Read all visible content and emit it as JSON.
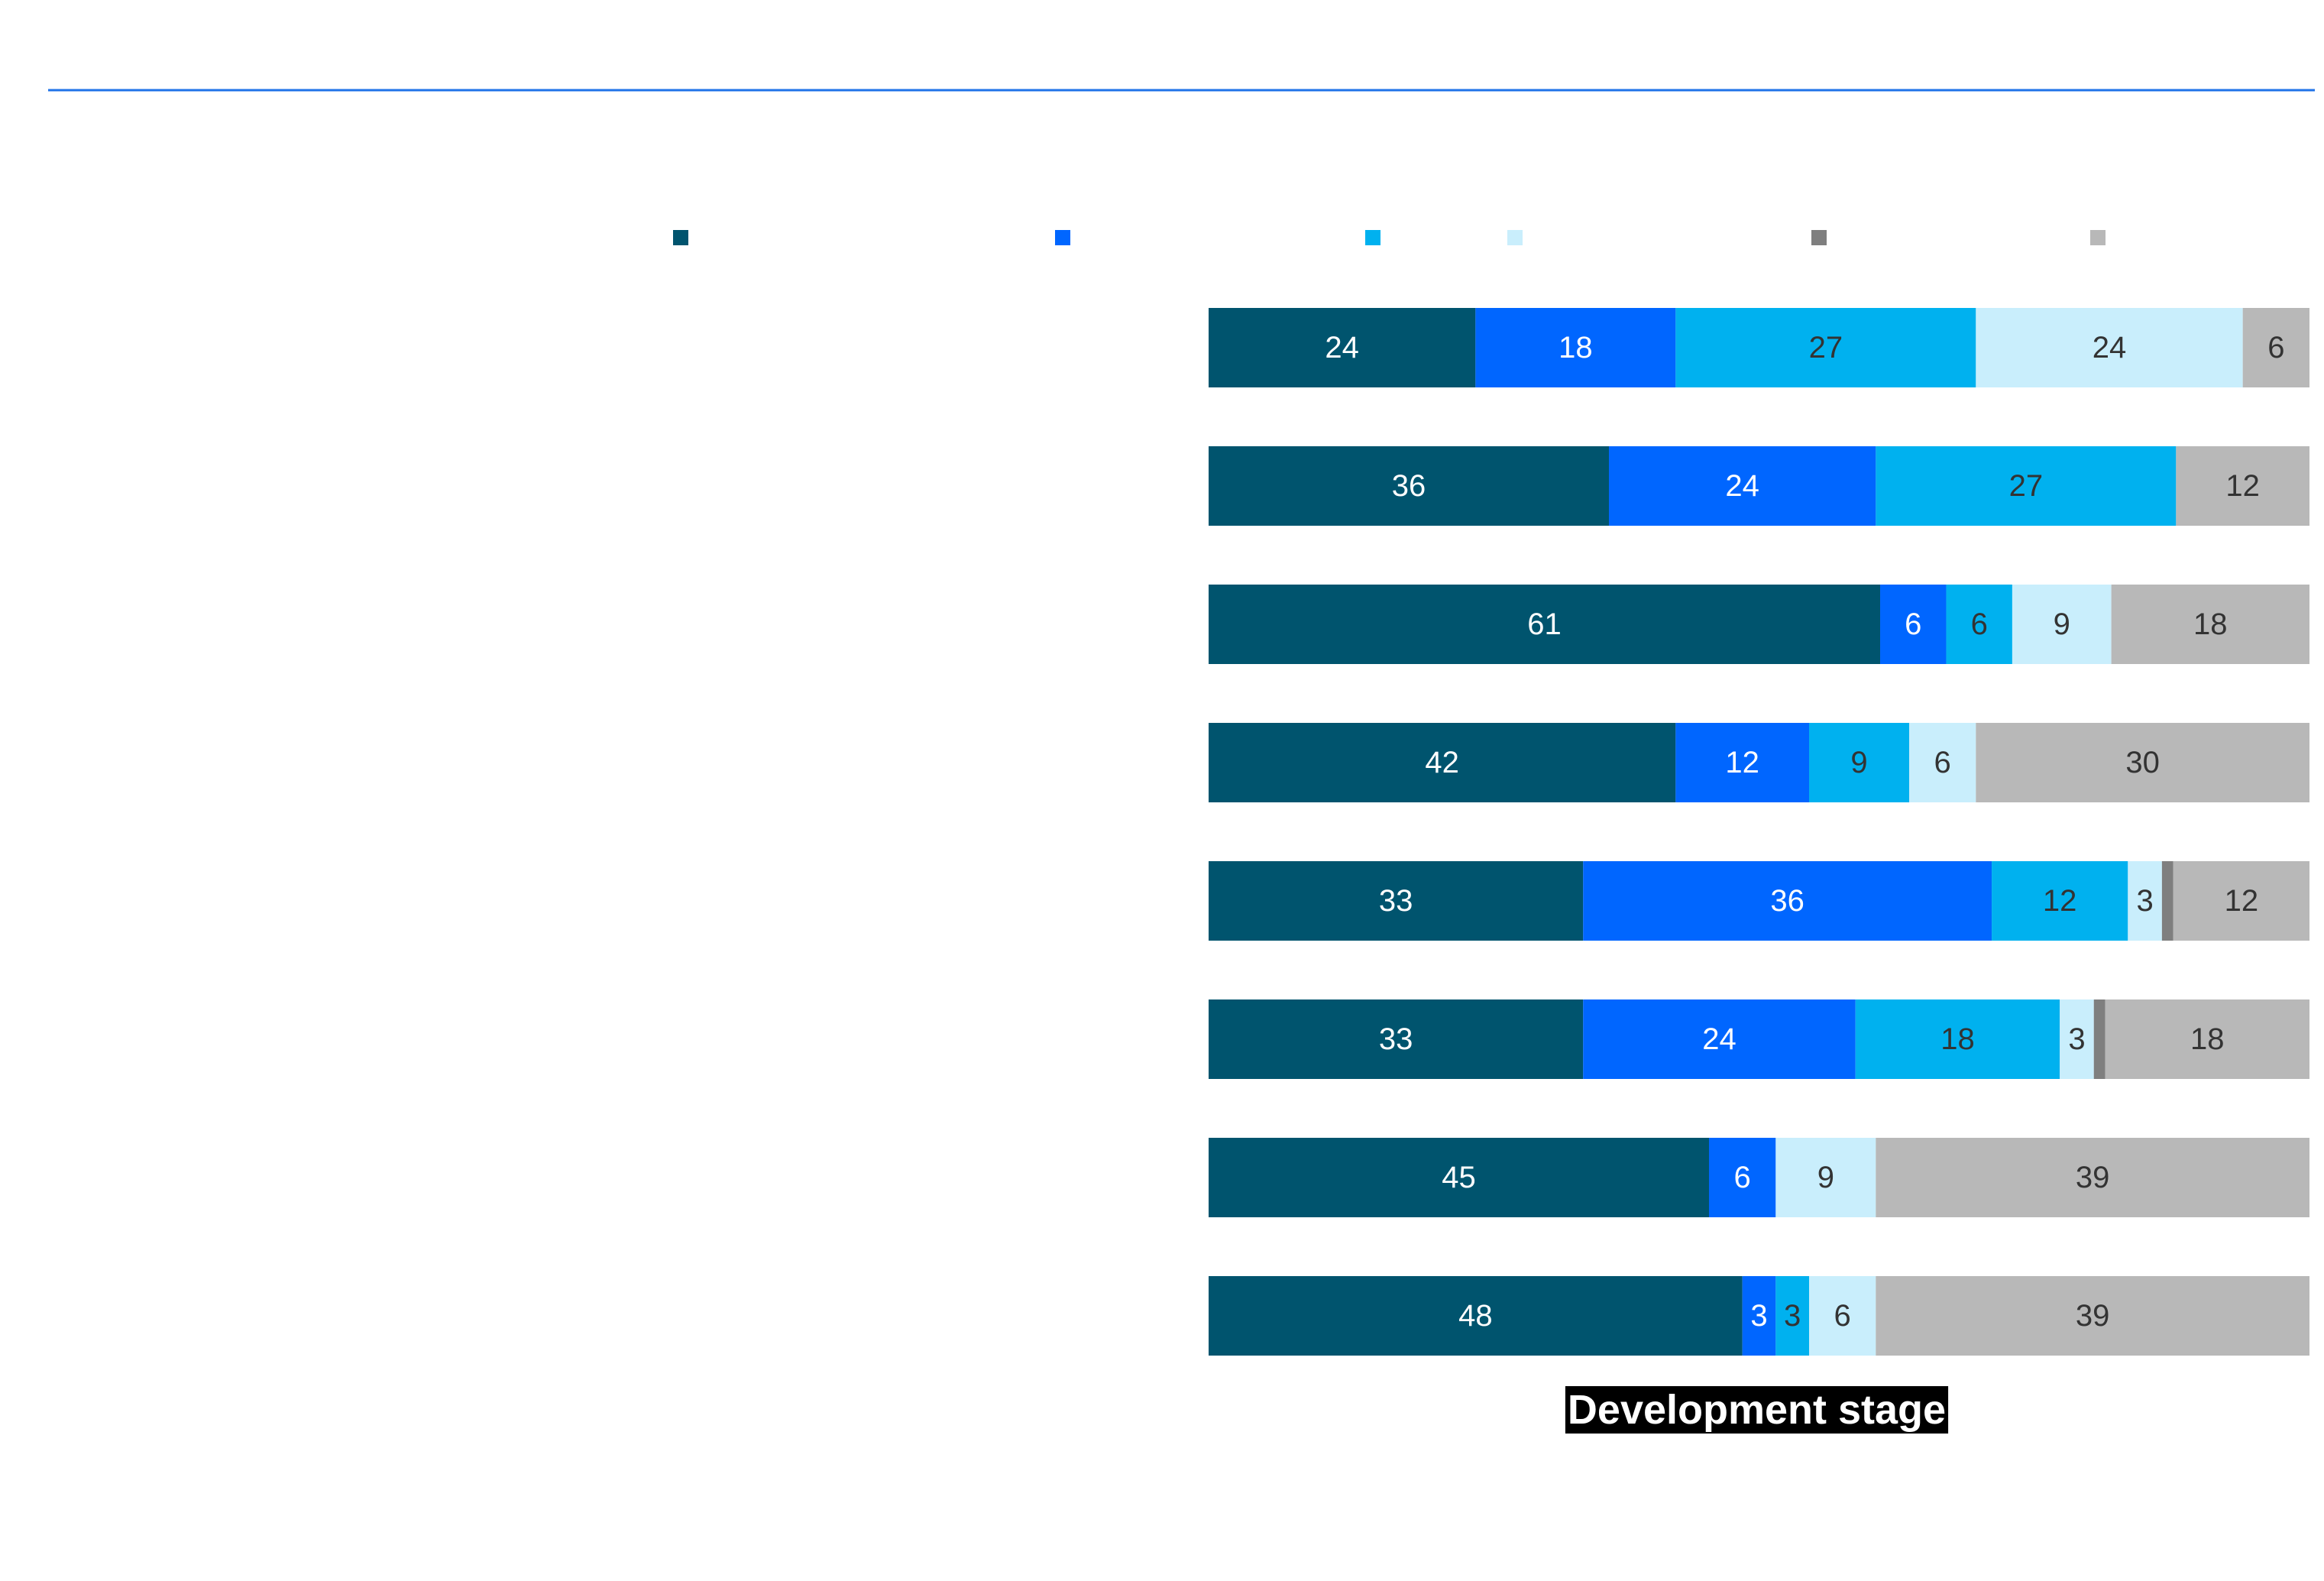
{
  "colors": {
    "top_rule": "#1f73e8",
    "label_dark": "#333333",
    "label_light": "#ffffff",
    "axis_label_bg": "#000000"
  },
  "chart_data": {
    "type": "bar",
    "orientation": "horizontal",
    "stacked": true,
    "xlabel": "Development stage",
    "xlim": [
      0,
      100
    ],
    "legend": {
      "placement": "top",
      "swatches_only": true
    },
    "categories": [
      "",
      "",
      "",
      "",
      "",
      "",
      "",
      ""
    ],
    "series": [
      {
        "color": "#00546e",
        "values": [
          24,
          36,
          61,
          42,
          33,
          33,
          45,
          48
        ]
      },
      {
        "color": "#0066ff",
        "values": [
          18,
          24,
          6,
          12,
          36,
          24,
          6,
          3
        ]
      },
      {
        "color": "#00b1ef",
        "values": [
          27,
          27,
          6,
          9,
          12,
          18,
          0,
          3
        ]
      },
      {
        "color": "#c9eefc",
        "values": [
          24,
          0,
          9,
          6,
          3,
          3,
          9,
          6
        ]
      },
      {
        "color": "#7f7f7f",
        "values": [
          0,
          0,
          0,
          0,
          1,
          1,
          0,
          0
        ]
      },
      {
        "color": "#b8b8b8",
        "values": [
          6,
          12,
          18,
          30,
          12,
          18,
          39,
          39
        ]
      }
    ],
    "label_color_by_series": [
      "light",
      "light",
      "dark",
      "dark",
      "dark",
      "dark"
    ]
  }
}
